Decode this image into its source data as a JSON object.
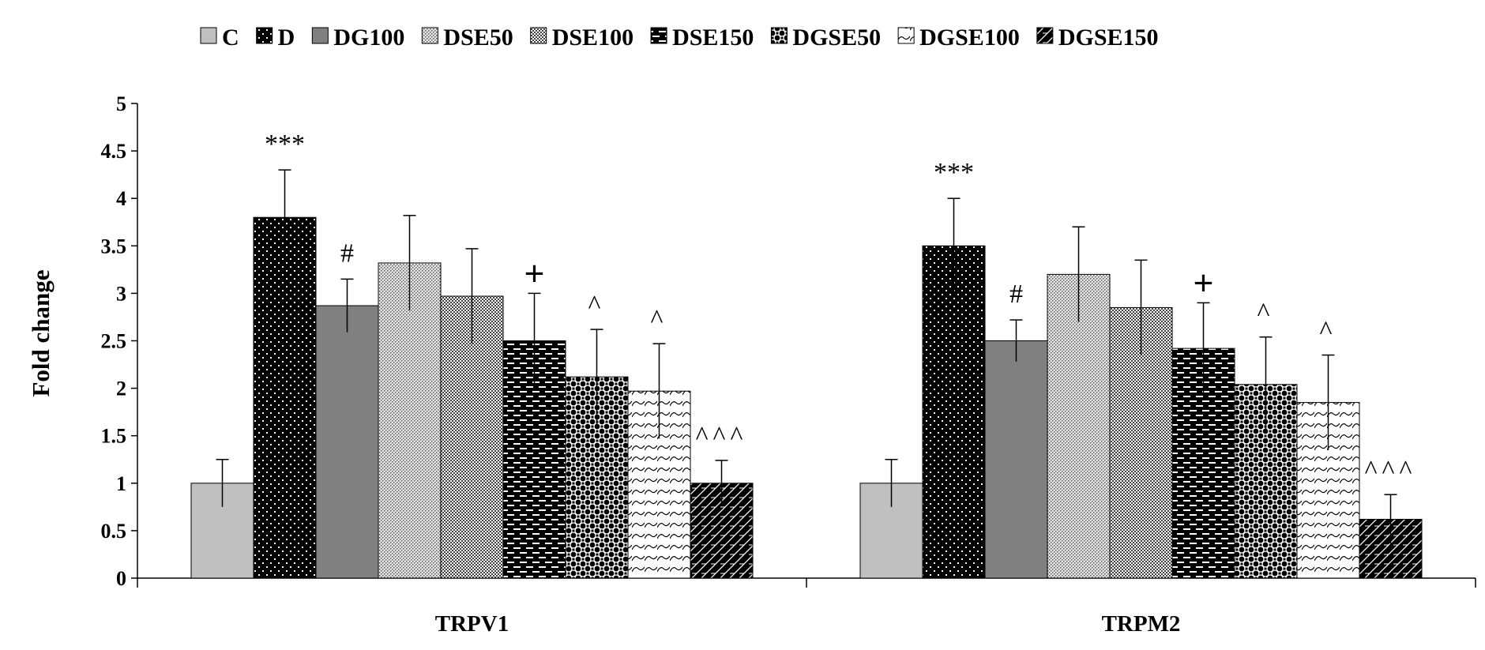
{
  "chart_data": {
    "type": "bar",
    "title": "",
    "xlabel": "",
    "ylabel": "Fold change",
    "ylim": [
      0,
      5
    ],
    "yticks": [
      "0",
      "0.5",
      "1",
      "1.5",
      "2",
      "2.5",
      "3",
      "3.5",
      "4",
      "4.5",
      "5"
    ],
    "grid": false,
    "legend_position": "top",
    "categories": [
      "TRPV1",
      "TRPM2"
    ],
    "series": [
      {
        "name": "C",
        "values": [
          1.0,
          1.0
        ],
        "errors": [
          0.25,
          0.25
        ],
        "pattern": "solid-light",
        "annotations": [
          "",
          ""
        ]
      },
      {
        "name": "D",
        "values": [
          3.8,
          3.5
        ],
        "errors": [
          0.5,
          0.5
        ],
        "pattern": "dots-dark",
        "annotations": [
          "***",
          "***"
        ]
      },
      {
        "name": "DG100",
        "values": [
          2.87,
          2.5
        ],
        "errors": [
          0.28,
          0.22
        ],
        "pattern": "solid-gray",
        "annotations": [
          "#",
          "#"
        ]
      },
      {
        "name": "DSE50",
        "values": [
          3.32,
          3.2
        ],
        "errors": [
          0.5,
          0.5
        ],
        "pattern": "fine-dots",
        "annotations": [
          "",
          ""
        ]
      },
      {
        "name": "DSE100",
        "values": [
          2.97,
          2.85
        ],
        "errors": [
          0.5,
          0.5
        ],
        "pattern": "checker",
        "annotations": [
          "",
          ""
        ]
      },
      {
        "name": "DSE150",
        "values": [
          2.5,
          2.42
        ],
        "errors": [
          0.5,
          0.48
        ],
        "pattern": "dashes-dark",
        "annotations": [
          "+",
          "+"
        ]
      },
      {
        "name": "DGSE50",
        "values": [
          2.12,
          2.04
        ],
        "errors": [
          0.5,
          0.5
        ],
        "pattern": "circles-dark",
        "annotations": [
          "^",
          "^"
        ]
      },
      {
        "name": "DGSE100",
        "values": [
          1.97,
          1.85
        ],
        "errors": [
          0.5,
          0.5
        ],
        "pattern": "waves-light",
        "annotations": [
          "^",
          "^"
        ]
      },
      {
        "name": "DGSE150",
        "values": [
          1.0,
          0.62
        ],
        "errors": [
          0.24,
          0.26
        ],
        "pattern": "hatch-dark",
        "annotations": [
          "^^^",
          "^^^"
        ]
      }
    ],
    "colors": {
      "axis": "#000000",
      "light_gray": "#c0c0c0",
      "mid_gray": "#808080",
      "dark": "#000000",
      "white": "#ffffff"
    }
  }
}
